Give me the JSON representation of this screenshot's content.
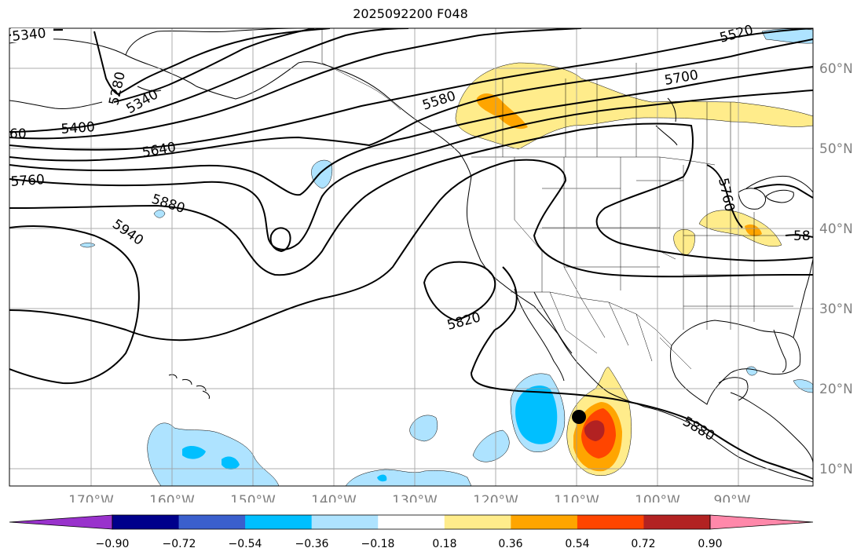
{
  "title": "2025092200 F048",
  "lon_labels": [
    "170°W",
    "160°W",
    "150°W",
    "140°W",
    "130°W",
    "120°W",
    "110°W",
    "100°W",
    "90°W"
  ],
  "lat_labels": [
    "60°N",
    "50°N",
    "40°N",
    "30°N",
    "20°N",
    "10°N"
  ],
  "contour_labels": [
    "5340",
    "5280",
    "5340",
    "5400",
    "60",
    "5580",
    "5700",
    "5640",
    "5760",
    "5880",
    "5940",
    "5820",
    "5880",
    "5760",
    "58",
    "5520"
  ],
  "colorbar": {
    "ticks": [
      "−0.90",
      "−0.72",
      "−0.54",
      "−0.36",
      "−0.18",
      "0.18",
      "0.36",
      "0.54",
      "0.72",
      "0.90"
    ],
    "colors": [
      "#9932cc",
      "#00008b",
      "#3a5fcd",
      "#00bfff",
      "#aee3ff",
      "#ffffff",
      "#ffec8b",
      "#ffa500",
      "#ff4500",
      "#b22222",
      "#ff88aa"
    ]
  },
  "colors": {
    "grid": "#999999",
    "contour": "#000000",
    "label_gray": "#808080"
  },
  "storm_marker": "black-dot"
}
